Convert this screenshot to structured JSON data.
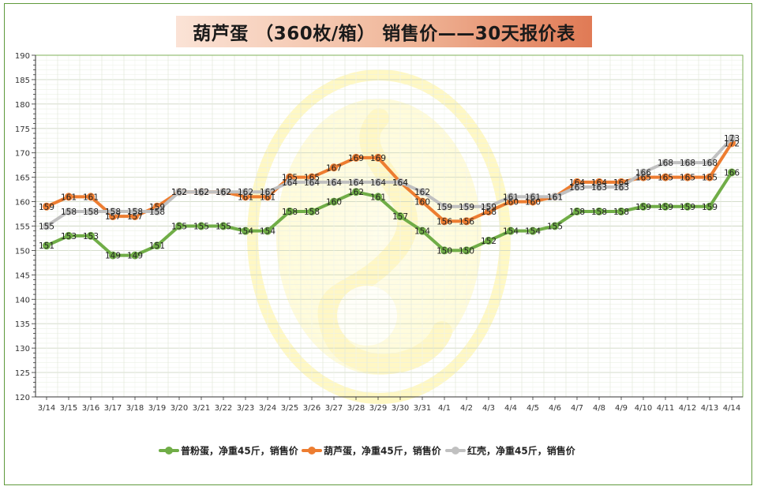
{
  "chart_data": {
    "type": "line",
    "title": "葫芦蛋 （360枚/箱） 销售价——30天报价表",
    "xlabel": "",
    "ylabel": "",
    "ylim": [
      120,
      190
    ],
    "ystep": 5,
    "grid": true,
    "legend_position": "bottom",
    "categories": [
      "3/14",
      "3/15",
      "3/16",
      "3/17",
      "3/18",
      "3/19",
      "3/20",
      "3/21",
      "3/22",
      "3/23",
      "3/24",
      "3/25",
      "3/26",
      "3/27",
      "3/28",
      "3/29",
      "3/30",
      "3/31",
      "4/1",
      "4/2",
      "4/3",
      "4/4",
      "4/5",
      "4/6",
      "4/7",
      "4/8",
      "4/9",
      "4/10",
      "4/11",
      "4/12",
      "4/13",
      "4/14"
    ],
    "series": [
      {
        "name": "普粉蛋，净重45斤，销售价",
        "color": "#70ad47",
        "values": [
          151,
          153,
          153,
          149,
          149,
          151,
          155,
          155,
          155,
          154,
          154,
          158,
          158,
          160,
          162,
          161,
          157,
          154,
          150,
          150,
          152,
          154,
          154,
          155,
          158,
          158,
          158,
          159,
          159,
          159,
          159,
          166
        ]
      },
      {
        "name": "葫芦蛋，净重45斤，销售价",
        "color": "#ed7d31",
        "values": [
          159,
          161,
          161,
          157,
          157,
          159,
          162,
          162,
          162,
          161,
          161,
          165,
          165,
          167,
          169,
          169,
          164,
          160,
          156,
          156,
          158,
          160,
          160,
          161,
          164,
          164,
          164,
          165,
          165,
          165,
          165,
          172
        ]
      },
      {
        "name": "红壳，净重45斤，销售价",
        "color": "#c0c0c0",
        "values": [
          155,
          158,
          158,
          158,
          158,
          158,
          162,
          162,
          162,
          162,
          162,
          164,
          164,
          164,
          164,
          164,
          164,
          162,
          159,
          159,
          159,
          161,
          161,
          161,
          163,
          163,
          163,
          166,
          168,
          168,
          168,
          173
        ]
      }
    ]
  }
}
